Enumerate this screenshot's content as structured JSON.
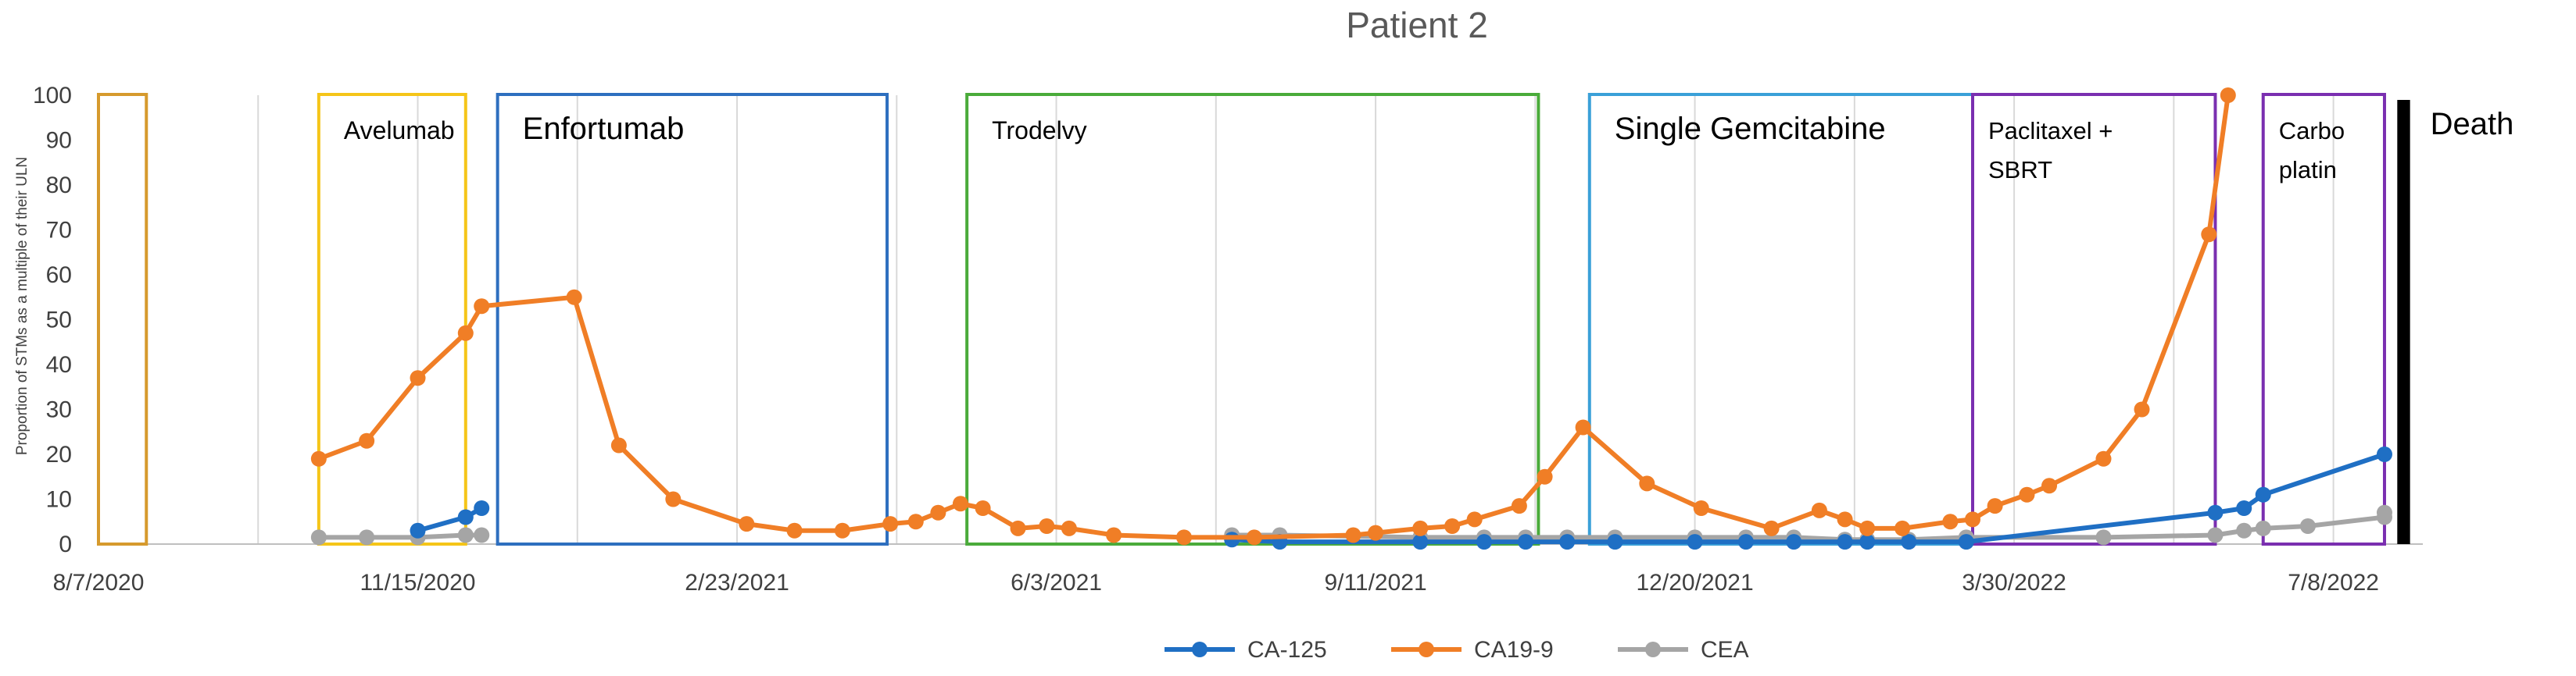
{
  "chart_data": {
    "type": "line",
    "title": "Patient 2",
    "ylabel": "Proportion of STMs as a multiple of their ULN",
    "xlabel": "",
    "ylim": [
      0,
      100
    ],
    "yticks": [
      0,
      10,
      20,
      30,
      40,
      50,
      60,
      70,
      80,
      90,
      100
    ],
    "xlim": [
      "2020-08-07",
      "2022-08-05"
    ],
    "xticks": [
      {
        "date": "2020-08-07",
        "label": "8/7/2020"
      },
      {
        "date": "2020-11-15",
        "label": "11/15/2020"
      },
      {
        "date": "2021-02-23",
        "label": "2/23/2021"
      },
      {
        "date": "2021-06-03",
        "label": "6/3/2021"
      },
      {
        "date": "2021-09-11",
        "label": "9/11/2021"
      },
      {
        "date": "2021-12-20",
        "label": "12/20/2021"
      },
      {
        "date": "2022-03-30",
        "label": "3/30/2022"
      },
      {
        "date": "2022-07-08",
        "label": "7/8/2022"
      }
    ],
    "grid": "vertical",
    "legend": "bottom",
    "series": [
      {
        "name": "CA-125",
        "color": "#1f6fc4",
        "points": [
          [
            "2020-11-15",
            3
          ],
          [
            "2020-11-30",
            6
          ],
          [
            "2020-12-05",
            8
          ],
          [
            "2021-07-28",
            1
          ],
          [
            "2021-08-12",
            0.5
          ],
          [
            "2021-09-25",
            0.5
          ],
          [
            "2021-10-15",
            0.5
          ],
          [
            "2021-10-28",
            0.5
          ],
          [
            "2021-11-10",
            0.5
          ],
          [
            "2021-11-25",
            0.5
          ],
          [
            "2021-12-20",
            0.5
          ],
          [
            "2022-01-05",
            0.5
          ],
          [
            "2022-01-20",
            0.5
          ],
          [
            "2022-02-05",
            0.5
          ],
          [
            "2022-02-12",
            0.5
          ],
          [
            "2022-02-25",
            0.5
          ],
          [
            "2022-03-15",
            0.5
          ],
          [
            "2022-06-01",
            7
          ],
          [
            "2022-06-10",
            8
          ],
          [
            "2022-06-16",
            11
          ],
          [
            "2022-07-24",
            20
          ]
        ]
      },
      {
        "name": "CA19-9",
        "color": "#f07e26",
        "points": [
          [
            "2020-10-15",
            19
          ],
          [
            "2020-10-30",
            23
          ],
          [
            "2020-11-15",
            37
          ],
          [
            "2020-11-30",
            47
          ],
          [
            "2020-12-05",
            53
          ],
          [
            "2021-01-03",
            55
          ],
          [
            "2021-01-17",
            22
          ],
          [
            "2021-02-03",
            10
          ],
          [
            "2021-02-26",
            4.5
          ],
          [
            "2021-03-13",
            3
          ],
          [
            "2021-03-28",
            3
          ],
          [
            "2021-04-12",
            4.5
          ],
          [
            "2021-04-20",
            5
          ],
          [
            "2021-04-27",
            7
          ],
          [
            "2021-05-04",
            9
          ],
          [
            "2021-05-11",
            8
          ],
          [
            "2021-05-22",
            3.5
          ],
          [
            "2021-05-31",
            4
          ],
          [
            "2021-06-07",
            3.5
          ],
          [
            "2021-06-21",
            2
          ],
          [
            "2021-07-13",
            1.5
          ],
          [
            "2021-08-04",
            1.5
          ],
          [
            "2021-09-04",
            2
          ],
          [
            "2021-09-11",
            2.5
          ],
          [
            "2021-09-25",
            3.5
          ],
          [
            "2021-10-05",
            4
          ],
          [
            "2021-10-12",
            5.5
          ],
          [
            "2021-10-26",
            8.5
          ],
          [
            "2021-11-03",
            15
          ],
          [
            "2021-11-15",
            26
          ],
          [
            "2021-12-05",
            13.5
          ],
          [
            "2021-12-22",
            8
          ],
          [
            "2022-01-13",
            3.5
          ],
          [
            "2022-01-28",
            7.5
          ],
          [
            "2022-02-05",
            5.5
          ],
          [
            "2022-02-12",
            3.5
          ],
          [
            "2022-02-23",
            3.5
          ],
          [
            "2022-03-10",
            5
          ],
          [
            "2022-03-17",
            5.5
          ],
          [
            "2022-03-24",
            8.5
          ],
          [
            "2022-04-03",
            11
          ],
          [
            "2022-04-10",
            13
          ],
          [
            "2022-04-27",
            19
          ],
          [
            "2022-05-09",
            30
          ],
          [
            "2022-05-30",
            69
          ],
          [
            "2022-06-05",
            100
          ]
        ]
      },
      {
        "name": "CEA",
        "color": "#a5a5a5",
        "points": [
          [
            "2020-10-15",
            1.5
          ],
          [
            "2020-10-30",
            1.5
          ],
          [
            "2020-11-15",
            1.5
          ],
          [
            "2020-11-30",
            2
          ],
          [
            "2020-12-05",
            2
          ],
          [
            "2021-07-28",
            2
          ],
          [
            "2021-08-12",
            2
          ],
          [
            "2021-09-25",
            1.5
          ],
          [
            "2021-10-15",
            1.5
          ],
          [
            "2021-10-28",
            1.5
          ],
          [
            "2021-11-10",
            1.5
          ],
          [
            "2021-11-25",
            1.5
          ],
          [
            "2021-12-20",
            1.5
          ],
          [
            "2022-01-05",
            1.5
          ],
          [
            "2022-01-20",
            1.5
          ],
          [
            "2022-02-05",
            1
          ],
          [
            "2022-02-12",
            1
          ],
          [
            "2022-02-25",
            1
          ],
          [
            "2022-03-15",
            1.5
          ],
          [
            "2022-04-27",
            1.5
          ],
          [
            "2022-06-01",
            2
          ],
          [
            "2022-06-10",
            3
          ],
          [
            "2022-06-16",
            3.5
          ],
          [
            "2022-06-30",
            4
          ],
          [
            "2022-07-24",
            6
          ],
          [
            "2022-07-24",
            7
          ]
        ]
      }
    ],
    "annotations": [
      {
        "label": "",
        "start": "2020-08-07",
        "end": "2020-08-22",
        "color": "#d69a2d"
      },
      {
        "label": "Avelumab",
        "start": "2020-10-15",
        "end": "2020-11-30",
        "color": "#f5c518"
      },
      {
        "label": "Enfortumab",
        "start": "2020-12-10",
        "end": "2021-04-11",
        "color": "#2e6fbf"
      },
      {
        "label": "Trodelvy",
        "start": "2021-05-06",
        "end": "2021-11-01",
        "color": "#4aab3a"
      },
      {
        "label": "Single Gemcitabine",
        "start": "2021-11-17",
        "end": "2022-03-17",
        "color": "#3aa0d8"
      },
      {
        "label": "Paclitaxel +\nSBRT",
        "start": "2022-03-17",
        "end": "2022-06-01",
        "color": "#7a2fb0"
      },
      {
        "label": "Carbo\nplatin",
        "start": "2022-06-16",
        "end": "2022-07-24",
        "color": "#7a2fb0"
      },
      {
        "label": "Death",
        "start": "2022-07-28",
        "end": "2022-08-01",
        "color": "#000000",
        "filled": true
      }
    ]
  }
}
